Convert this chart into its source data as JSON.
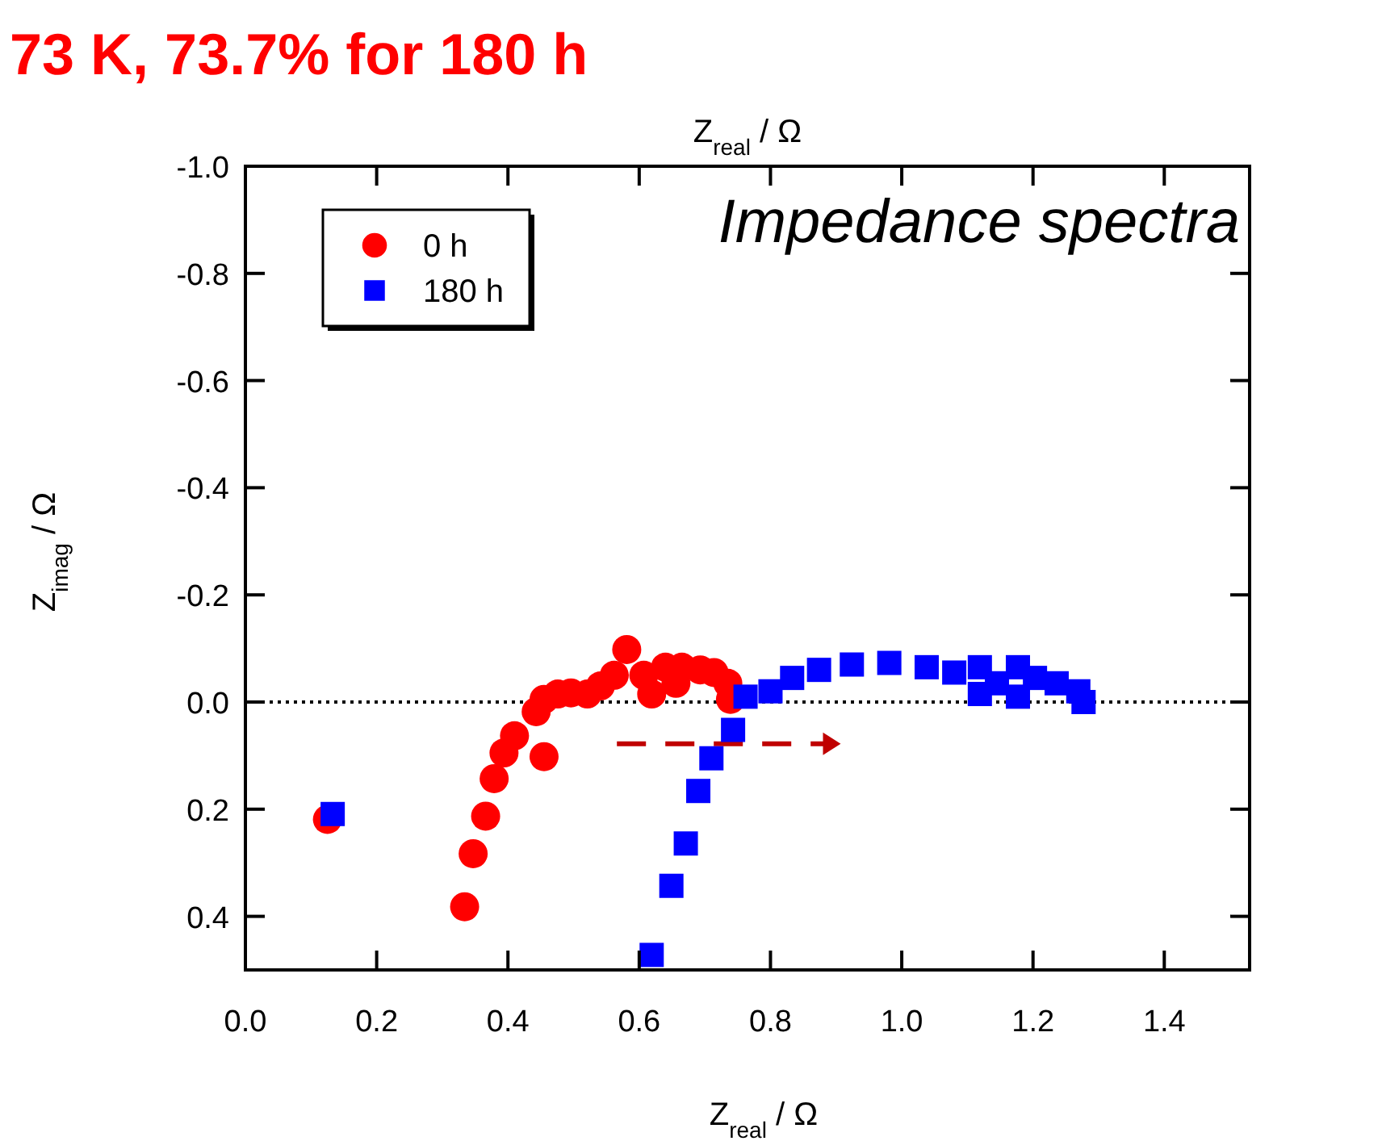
{
  "chart_data": {
    "type": "scatter",
    "title": "73 K, 73.7% for 180 h",
    "xlabel": "Z$_{real}$ /  Ω",
    "x2label": "Z$_{real}$ /  Ω",
    "ylabel": "Z$_{imag}$ /  Ω",
    "annotations": [
      "Impedance spectra"
    ],
    "xlim": [
      0,
      1.53
    ],
    "ylim": [
      0.5,
      -1.0
    ],
    "xticks": [
      {
        "value": 0,
        "label": "0.0"
      },
      0.2,
      0.4,
      0.6,
      0.8,
      {
        "value": 1,
        "label": "1.0"
      },
      1.2,
      1.4
    ],
    "yticks": [
      {
        "value": -1,
        "label": "-1.0"
      },
      -0.8,
      -0.6,
      -0.4,
      -0.2,
      {
        "value": 0,
        "label": "0.0"
      },
      0.2,
      0.4
    ],
    "ref_lines": [
      {
        "axis": "y",
        "value": 0,
        "color": "#000000",
        "line_style": "dotted"
      }
    ],
    "legend": "top left",
    "grid": false,
    "series": [
      {
        "name": "0 h",
        "color": "#ff0000",
        "marker": "circle",
        "x": [
          0.125,
          0.334,
          0.347,
          0.366,
          0.379,
          0.394,
          0.41,
          0.455,
          0.443,
          0.455,
          0.476,
          0.496,
          0.521,
          0.541,
          0.562,
          0.581,
          0.607,
          0.619,
          0.64,
          0.656,
          0.665,
          0.693,
          0.714,
          0.735,
          0.739
        ],
        "values": [
          0.219,
          0.382,
          0.283,
          0.213,
          0.143,
          0.095,
          0.063,
          0.102,
          0.018,
          -0.005,
          -0.015,
          -0.017,
          -0.015,
          -0.03,
          -0.05,
          -0.098,
          -0.05,
          -0.015,
          -0.065,
          -0.035,
          -0.065,
          -0.06,
          -0.055,
          -0.035,
          -0.005
        ]
      },
      {
        "name": "180 h",
        "color": "#0000ff",
        "marker": "square",
        "x": [
          0.133,
          0.619,
          0.649,
          0.671,
          0.69,
          0.71,
          0.743,
          0.762,
          0.8,
          0.833,
          0.874,
          0.924,
          0.981,
          1.038,
          1.08,
          1.119,
          1.119,
          1.145,
          1.177,
          1.177,
          1.203,
          1.236,
          1.269,
          1.277
        ],
        "values": [
          0.209,
          0.472,
          0.343,
          0.264,
          0.166,
          0.105,
          0.052,
          -0.01,
          -0.02,
          -0.045,
          -0.06,
          -0.07,
          -0.073,
          -0.065,
          -0.055,
          -0.065,
          -0.015,
          -0.035,
          -0.065,
          -0.01,
          -0.045,
          -0.035,
          -0.02,
          0.0
        ]
      }
    ]
  }
}
